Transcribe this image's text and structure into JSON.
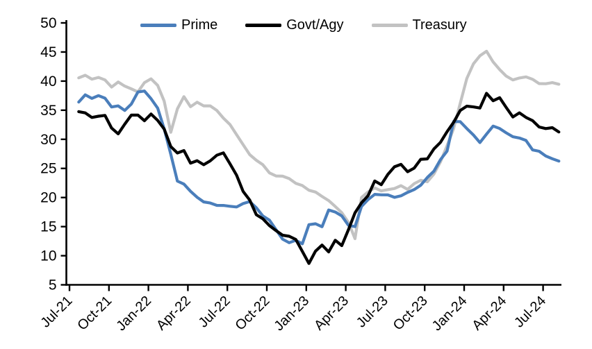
{
  "chart_data": {
    "type": "line",
    "title": "",
    "grid": false,
    "legend_position": "top",
    "x_axis": {
      "unit": "months since Jul-2021",
      "months_per_tick": 3,
      "tick_labels": [
        "Jul-21",
        "Oct-21",
        "Jan-22",
        "Apr-22",
        "Jul-22",
        "Oct-22",
        "Jan-23",
        "Apr-23",
        "Jul-23",
        "Oct-23",
        "Jan-24",
        "Apr-24",
        "Jul-24"
      ]
    },
    "y_axis": {
      "min": 5,
      "max": 50,
      "tick_step": 5,
      "tick_labels": [
        "50",
        "45",
        "40",
        "35",
        "30",
        "25",
        "20",
        "15",
        "10",
        "5"
      ]
    },
    "sampling": {
      "x_start_month": 0.7,
      "x_step_months": 0.5
    },
    "draw_order": [
      2,
      0,
      1
    ],
    "series": [
      {
        "name": "Prime",
        "color": "#4a7ebb",
        "values": [
          36.4,
          37.6,
          37.1,
          37.4,
          37.2,
          35.4,
          35.9,
          34.8,
          36.2,
          38.0,
          38.4,
          36.9,
          35.4,
          31.8,
          27.4,
          22.9,
          22.2,
          21.2,
          19.9,
          19.4,
          18.9,
          18.8,
          18.5,
          18.6,
          18.3,
          19.0,
          19.3,
          18.2,
          16.9,
          16.0,
          14.6,
          12.7,
          12.4,
          12.5,
          12.2,
          15.2,
          15.6,
          14.9,
          17.9,
          17.5,
          16.8,
          15.3,
          14.9,
          18.6,
          19.5,
          20.7,
          20.3,
          20.6,
          19.9,
          20.4,
          20.8,
          21.4,
          22.1,
          23.4,
          24.6,
          26.4,
          28.1,
          32.9,
          33.2,
          31.7,
          30.9,
          29.3,
          31.0,
          32.2,
          31.9,
          31.1,
          30.4,
          30.3,
          29.7,
          28.3,
          27.8,
          27.3,
          26.5,
          26.4
        ]
      },
      {
        "name": "Govt/Agy",
        "color": "#000000",
        "values": [
          34.6,
          34.7,
          33.6,
          34.1,
          34.0,
          32.0,
          30.9,
          32.6,
          34.2,
          34.1,
          33.3,
          34.2,
          33.4,
          31.6,
          28.9,
          27.5,
          28.2,
          25.8,
          26.4,
          25.6,
          26.3,
          27.3,
          27.6,
          25.9,
          23.7,
          21.2,
          19.4,
          17.2,
          16.2,
          15.3,
          14.2,
          13.6,
          13.3,
          12.8,
          10.8,
          8.6,
          10.9,
          11.7,
          10.8,
          12.5,
          11.9,
          14.3,
          17.5,
          19.0,
          20.4,
          22.8,
          22.2,
          24.0,
          25.2,
          25.8,
          24.3,
          25.2,
          26.4,
          26.8,
          28.2,
          29.6,
          31.2,
          33.0,
          34.9,
          35.7,
          35.6,
          35.3,
          38.0,
          36.5,
          37.3,
          35.3,
          34.0,
          34.4,
          33.9,
          33.1,
          32.2,
          31.8,
          32.0,
          31.3
        ]
      },
      {
        "name": "Treasury",
        "color": "#c2c2c2",
        "values": [
          40.6,
          41.0,
          40.3,
          40.7,
          40.1,
          39.1,
          39.7,
          39.3,
          38.5,
          38.3,
          39.6,
          40.5,
          39.2,
          36.6,
          31.2,
          35.2,
          37.4,
          35.5,
          36.5,
          35.6,
          35.9,
          34.8,
          33.8,
          32.4,
          30.9,
          29.0,
          27.4,
          26.4,
          25.6,
          24.3,
          23.6,
          23.8,
          23.1,
          22.6,
          21.9,
          21.4,
          20.8,
          20.3,
          19.4,
          18.5,
          17.4,
          15.7,
          13.0,
          19.9,
          21.1,
          21.5,
          21.3,
          21.2,
          21.7,
          21.9,
          21.5,
          22.3,
          23.0,
          22.7,
          24.0,
          26.2,
          28.8,
          32.0,
          36.0,
          40.6,
          42.8,
          44.5,
          45.0,
          43.4,
          41.9,
          40.9,
          40.2,
          40.5,
          40.8,
          40.2,
          39.7,
          39.4,
          39.9,
          39.3
        ]
      }
    ]
  }
}
